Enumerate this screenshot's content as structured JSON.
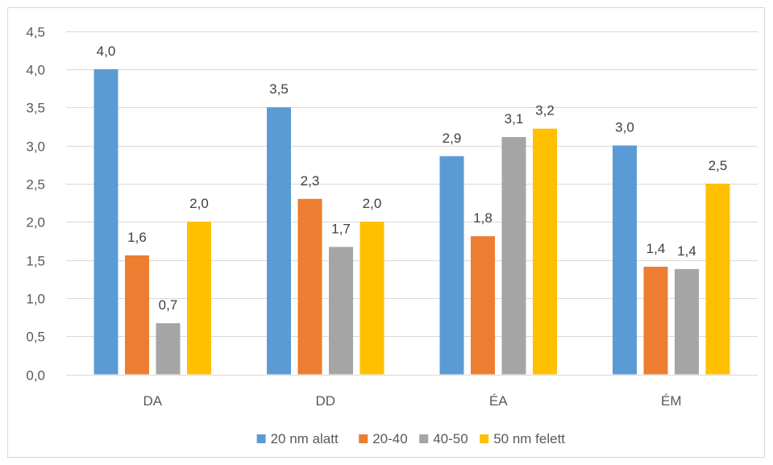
{
  "chart_data": {
    "type": "bar",
    "title": "",
    "xlabel": "",
    "ylabel": "",
    "categories": [
      "DA",
      "DD",
      "ÉA",
      "ÉM"
    ],
    "series": [
      {
        "name": "20 nm alatt",
        "color": "#5b9bd5",
        "values": [
          4.0,
          3.5,
          2.86,
          3.0
        ],
        "labels": [
          "4,0",
          "3,5",
          "2,9",
          "3,0"
        ]
      },
      {
        "name": "20-40",
        "color": "#ed7d31",
        "values": [
          1.56,
          2.3,
          1.81,
          1.41
        ],
        "labels": [
          "1,6",
          "2,3",
          "1,8",
          "1,4"
        ]
      },
      {
        "name": "40-50",
        "color": "#a5a5a5",
        "values": [
          0.67,
          1.67,
          3.11,
          1.38
        ],
        "labels": [
          "0,7",
          "1,7",
          "3,1",
          "1,4"
        ]
      },
      {
        "name": "50 nm felett",
        "color": "#ffc000",
        "values": [
          2.0,
          2.0,
          3.22,
          2.5
        ],
        "labels": [
          "2,0",
          "2,0",
          "3,2",
          "2,5"
        ]
      }
    ],
    "ylim": [
      0,
      4.5
    ],
    "yticks": [
      "0,0",
      "0,5",
      "1,0",
      "1,5",
      "2,0",
      "2,5",
      "3,0",
      "3,5",
      "4,0",
      "4,5"
    ],
    "grid": true,
    "legend_position": "bottom"
  }
}
